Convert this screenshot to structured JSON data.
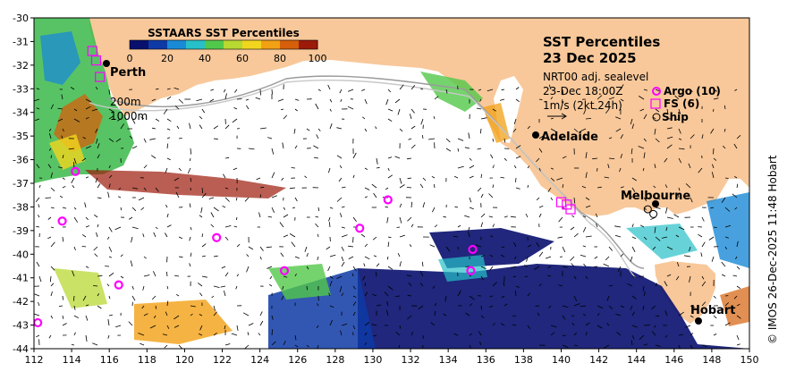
{
  "map": {
    "title": "SST Percentiles",
    "date": "23 Dec 2025",
    "product": "NRT00 adj. sealevel",
    "valid_time": "23-Dec 18:00Z",
    "velocity_scale": "1m/s (2kt 24h)",
    "colorbar": {
      "title": "SSTAARS SST Percentiles",
      "ticks": [
        "0",
        "20",
        "40",
        "60",
        "80",
        "100"
      ],
      "colors": [
        "#08106e",
        "#0e3aa6",
        "#1a8ad6",
        "#27c0c8",
        "#52c84a",
        "#b8d832",
        "#f2d61e",
        "#f2a014",
        "#d55f0a",
        "#9c1a0a"
      ]
    },
    "isobaths": [
      "200m",
      "1000m"
    ],
    "legend": [
      {
        "symbol": "circle-magenta",
        "label": "Argo (10)"
      },
      {
        "symbol": "square-magenta",
        "label": "FS (6)"
      },
      {
        "symbol": "circle-black",
        "label": "Ship"
      }
    ],
    "cities": [
      {
        "name": "Perth",
        "lon": 115.9,
        "lat": -32.0
      },
      {
        "name": "Adelaide",
        "lon": 138.6,
        "lat": -34.9
      },
      {
        "name": "Melbourne",
        "lon": 145.0,
        "lat": -37.8
      },
      {
        "name": "Hobart",
        "lon": 147.3,
        "lat": -42.9
      }
    ],
    "argo_floats": [
      {
        "lon": 114.2,
        "lat": -36.5
      },
      {
        "lon": 113.5,
        "lat": -38.6
      },
      {
        "lon": 112.2,
        "lat": -42.9
      },
      {
        "lon": 116.5,
        "lat": -41.3
      },
      {
        "lon": 121.7,
        "lat": -39.3
      },
      {
        "lon": 125.3,
        "lat": -40.7
      },
      {
        "lon": 129.3,
        "lat": -38.9
      },
      {
        "lon": 130.8,
        "lat": -37.7
      },
      {
        "lon": 135.3,
        "lat": -39.8
      },
      {
        "lon": 135.2,
        "lat": -40.7
      }
    ],
    "fs_tracks": [
      {
        "lon": 115.1,
        "lat": -31.4
      },
      {
        "lon": 115.3,
        "lat": -31.8
      },
      {
        "lon": 115.5,
        "lat": -32.5
      },
      {
        "lon": 140.0,
        "lat": -37.8
      },
      {
        "lon": 140.5,
        "lat": -38.1
      },
      {
        "lon": 140.3,
        "lat": -37.9
      }
    ],
    "ships": [
      {
        "lon": 144.6,
        "lat": -38.1
      },
      {
        "lon": 144.9,
        "lat": -38.3
      }
    ],
    "x_axis": {
      "min": 112,
      "max": 150,
      "ticks": [
        112,
        114,
        116,
        118,
        120,
        122,
        124,
        126,
        128,
        130,
        132,
        134,
        136,
        138,
        140,
        142,
        144,
        146,
        148,
        150
      ]
    },
    "y_axis": {
      "min": -44,
      "max": -30,
      "ticks": [
        -30,
        -31,
        -32,
        -33,
        -34,
        -35,
        -36,
        -37,
        -38,
        -39,
        -40,
        -41,
        -42,
        -43,
        -44
      ]
    },
    "credit": "© IMOS 26-Dec-2025 11:48 Hobart",
    "land_color": "#f8c89a",
    "ocean_color": "#ffffff"
  }
}
